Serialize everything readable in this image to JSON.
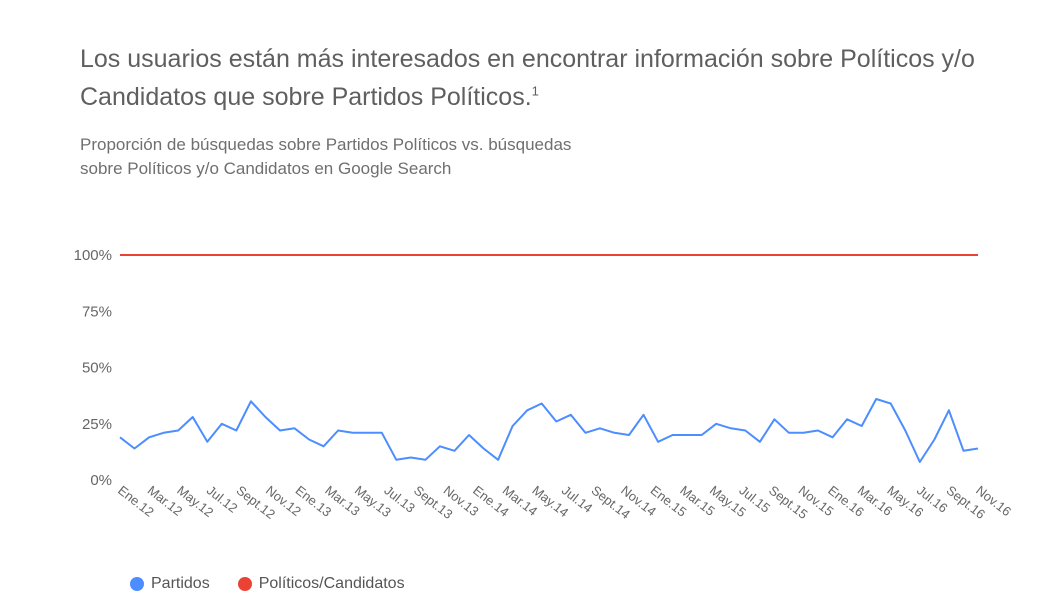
{
  "title": "Los usuarios están más interesados en encontrar información sobre Políticos y/o Candidatos que sobre Partidos Políticos.",
  "title_footnote": "1",
  "subtitle_line1": "Proporción de búsquedas sobre Partidos Políticos vs. búsquedas",
  "subtitle_line2": "sobre Políticos y/o Candidatos en Google Search",
  "colors": {
    "partidos": "#4c8dff",
    "politicos": "#ea4335",
    "axis_text": "#666666"
  },
  "chart_data": {
    "type": "line",
    "ylim": [
      0,
      100
    ],
    "y_ticks": [
      {
        "value": 0,
        "label": "0%"
      },
      {
        "value": 25,
        "label": "25%"
      },
      {
        "value": 50,
        "label": "50%"
      },
      {
        "value": 75,
        "label": "75%"
      },
      {
        "value": 100,
        "label": "100%"
      }
    ],
    "x_tick_labels": [
      "Ene.12",
      "Mar.12",
      "May.12",
      "Jul.12",
      "Sept.12",
      "Nov.12",
      "Ene.13",
      "Mar.13",
      "May.13",
      "Jul.13",
      "Sept.13",
      "Nov.13",
      "Ene.14",
      "Mar.14",
      "May.14",
      "Jul.14",
      "Sept.14",
      "Nov.14",
      "Ene.15",
      "Mar.15",
      "May.15",
      "Jul.15",
      "Sept.15",
      "Nov.15",
      "Ene.16",
      "Mar.16",
      "May.16",
      "Jul.16",
      "Sept.16",
      "Nov.16"
    ],
    "legend_placement": "bottom-left",
    "series": [
      {
        "name": "Partidos",
        "values": [
          19,
          14,
          19,
          21,
          22,
          28,
          17,
          25,
          22,
          35,
          28,
          22,
          23,
          18,
          15,
          22,
          21,
          21,
          21,
          9,
          10,
          9,
          15,
          13,
          20,
          14,
          9,
          24,
          31,
          34,
          26,
          29,
          21,
          23,
          21,
          20,
          29,
          17,
          20,
          20,
          20,
          25,
          23,
          22,
          17,
          27,
          21,
          21,
          22,
          19,
          27,
          24,
          36,
          34,
          22,
          8,
          18,
          31,
          13,
          14
        ],
        "color_key": "partidos"
      },
      {
        "name": "Políticos/Candidatos",
        "values": [
          100,
          100
        ],
        "color_key": "politicos"
      }
    ]
  },
  "legend": [
    {
      "label": "Partidos",
      "color_key": "partidos"
    },
    {
      "label": "Políticos/Candidatos",
      "color_key": "politicos"
    }
  ]
}
